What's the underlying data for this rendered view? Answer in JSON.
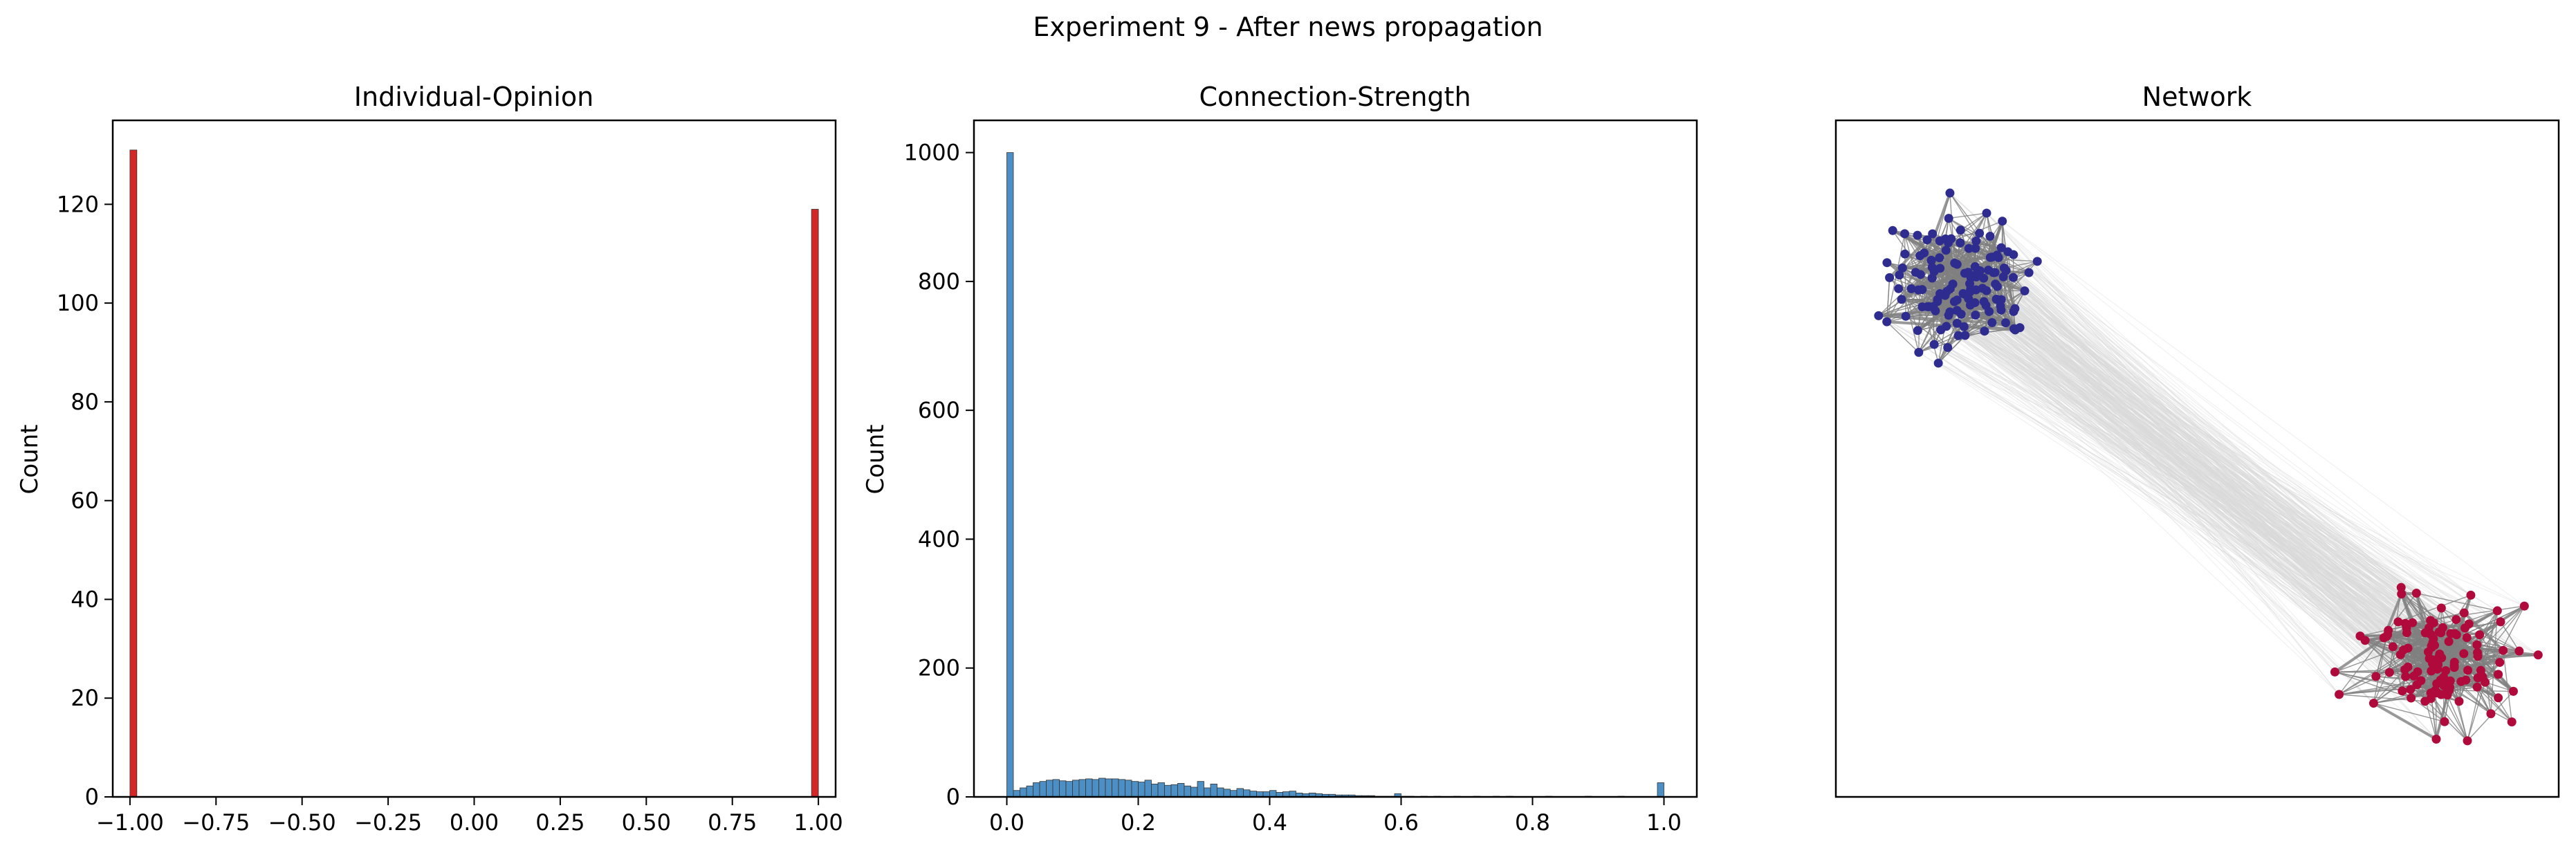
{
  "figure": {
    "suptitle": "Experiment 9 - After news propagation"
  },
  "chart_data": [
    {
      "type": "bar",
      "title": "Individual-Opinion",
      "xlabel": "",
      "ylabel": "Count",
      "xlim": [
        -1.05,
        1.05
      ],
      "ylim": [
        0,
        137
      ],
      "xticks": [
        -1.0,
        -0.75,
        -0.5,
        -0.25,
        0.0,
        0.25,
        0.5,
        0.75,
        1.0
      ],
      "xtick_labels": [
        "−1.00",
        "−0.75",
        "−0.50",
        "−0.25",
        "0.00",
        "0.25",
        "0.50",
        "0.75",
        "1.00"
      ],
      "yticks": [
        0,
        20,
        40,
        60,
        80,
        100,
        120
      ],
      "ytick_labels": [
        "0",
        "20",
        "40",
        "60",
        "80",
        "100",
        "120"
      ],
      "bin_width": 0.02,
      "bins": [
        {
          "x": -1.0,
          "count": 131
        },
        {
          "x": 0.98,
          "count": 119
        }
      ],
      "color": "#d62728"
    },
    {
      "type": "bar",
      "title": "Connection-Strength",
      "xlabel": "",
      "ylabel": "Count",
      "xlim": [
        -0.05,
        1.05
      ],
      "ylim": [
        0,
        1050
      ],
      "xticks": [
        0.0,
        0.2,
        0.4,
        0.6,
        0.8,
        1.0
      ],
      "xtick_labels": [
        "0.0",
        "0.2",
        "0.4",
        "0.6",
        "0.8",
        "1.0"
      ],
      "yticks": [
        0,
        200,
        400,
        600,
        800,
        1000
      ],
      "ytick_labels": [
        "0",
        "200",
        "400",
        "600",
        "800",
        "1000"
      ],
      "bin_width": 0.01,
      "bin_start": 0.0,
      "counts": [
        1000,
        10,
        14,
        17,
        22,
        24,
        26,
        27,
        25,
        24,
        26,
        27,
        28,
        27,
        29,
        28,
        28,
        27,
        26,
        24,
        23,
        26,
        20,
        22,
        18,
        19,
        21,
        17,
        15,
        24,
        14,
        20,
        14,
        12,
        10,
        13,
        11,
        9,
        8,
        8,
        10,
        7,
        8,
        9,
        6,
        5,
        6,
        5,
        4,
        4,
        3,
        3,
        3,
        2,
        2,
        2,
        1,
        1,
        1,
        5,
        1,
        1,
        0,
        1,
        0,
        1,
        0,
        0,
        1,
        0,
        0,
        1,
        0,
        0,
        1,
        0,
        1,
        0,
        0,
        0,
        0,
        0,
        1,
        0,
        0,
        0,
        0,
        0,
        1,
        0,
        0,
        0,
        0,
        1,
        0,
        0,
        0,
        0,
        0,
        0,
        22
      ],
      "color": "#4c8fc4"
    },
    {
      "type": "network",
      "title": "Network",
      "clusters": [
        {
          "opinion": -1,
          "count": 131,
          "color": "#2e2d8f"
        },
        {
          "opinion": 1,
          "count": 119,
          "color": "#b0093b"
        }
      ],
      "intra_edge_color": "#808080",
      "inter_edge_color": "#d9d9d9"
    }
  ]
}
